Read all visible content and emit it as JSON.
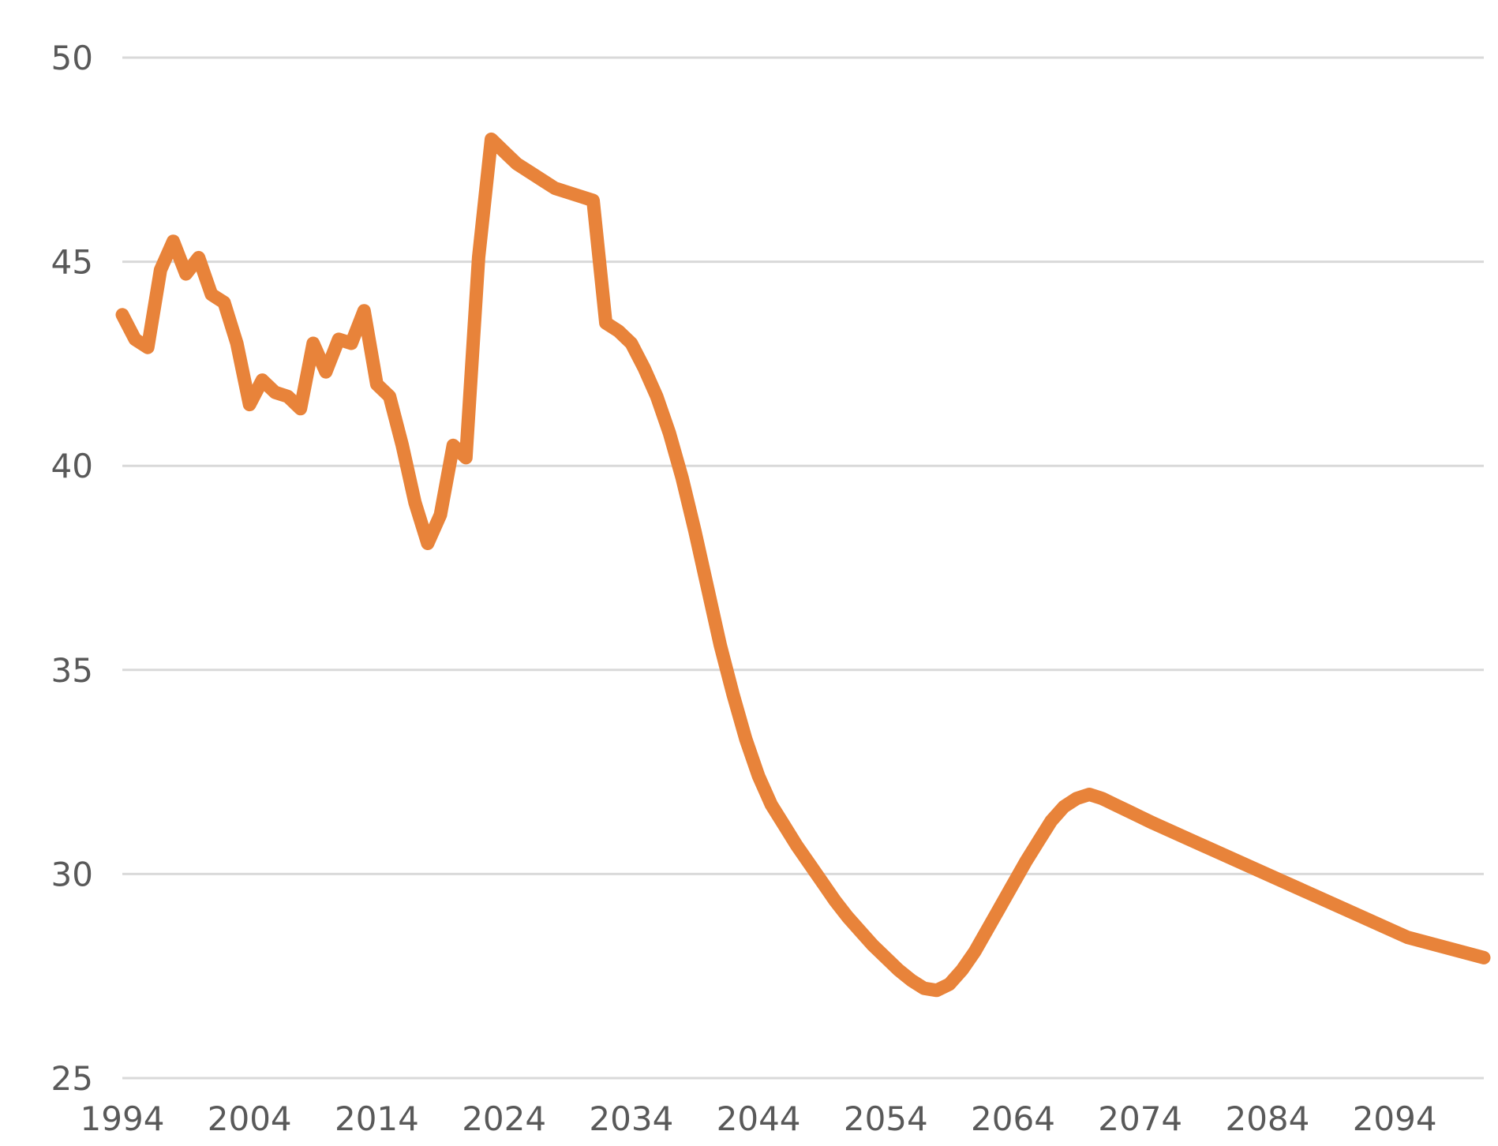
{
  "chart_data": {
    "type": "line",
    "title": "",
    "xlabel": "",
    "ylabel": "",
    "ylim": [
      25,
      50
    ],
    "xlim": [
      1994,
      2101
    ],
    "yticks": [
      25,
      30,
      35,
      40,
      45,
      50
    ],
    "xticks": [
      1994,
      2004,
      2014,
      2024,
      2034,
      2044,
      2054,
      2064,
      2074,
      2084,
      2094
    ],
    "grid": "horizontal",
    "legend": "none",
    "line_color": "#E8833A",
    "grid_color": "#D9D9D9",
    "tick_color": "#595959",
    "series": [
      {
        "x": [
          1994,
          1995,
          1996,
          1997,
          1998,
          1999,
          2000,
          2001,
          2002,
          2003,
          2004,
          2005,
          2006,
          2007,
          2008,
          2009,
          2010,
          2011,
          2012,
          2013,
          2014,
          2015,
          2016,
          2017,
          2018,
          2019,
          2020,
          2021,
          2022,
          2023,
          2024,
          2025,
          2026,
          2027,
          2028,
          2029,
          2030,
          2031,
          2032,
          2033,
          2034,
          2035,
          2036,
          2037,
          2038,
          2039,
          2040,
          2041,
          2042,
          2043,
          2044,
          2045,
          2046,
          2047,
          2048,
          2049,
          2050,
          2051,
          2052,
          2053,
          2054,
          2055,
          2056,
          2057,
          2058,
          2059,
          2060,
          2061,
          2062,
          2063,
          2064,
          2065,
          2066,
          2067,
          2068,
          2069,
          2070,
          2071,
          2072,
          2073,
          2074,
          2075,
          2080,
          2085,
          2090,
          2095,
          2101
        ],
        "y": [
          43.7,
          43.1,
          42.9,
          44.8,
          45.5,
          44.7,
          45.1,
          44.2,
          44.0,
          43.0,
          41.5,
          42.1,
          41.8,
          41.7,
          41.4,
          43.0,
          42.3,
          43.1,
          43.0,
          43.8,
          42.0,
          41.7,
          40.5,
          39.1,
          38.1,
          38.8,
          40.5,
          40.2,
          45.1,
          48.0,
          47.7,
          47.4,
          47.2,
          47.0,
          46.8,
          46.7,
          46.6,
          46.5,
          43.5,
          43.3,
          43.0,
          42.4,
          41.7,
          40.8,
          39.7,
          38.4,
          37.0,
          35.6,
          34.4,
          33.3,
          32.4,
          31.7,
          31.2,
          30.7,
          30.25,
          29.8,
          29.35,
          28.95,
          28.6,
          28.25,
          27.95,
          27.65,
          27.4,
          27.2,
          27.15,
          27.3,
          27.65,
          28.1,
          28.65,
          29.2,
          29.75,
          30.3,
          30.8,
          31.3,
          31.65,
          31.85,
          31.95,
          31.85,
          31.7,
          31.55,
          31.4,
          31.25,
          30.55,
          29.85,
          29.15,
          28.45,
          27.95
        ]
      }
    ]
  }
}
